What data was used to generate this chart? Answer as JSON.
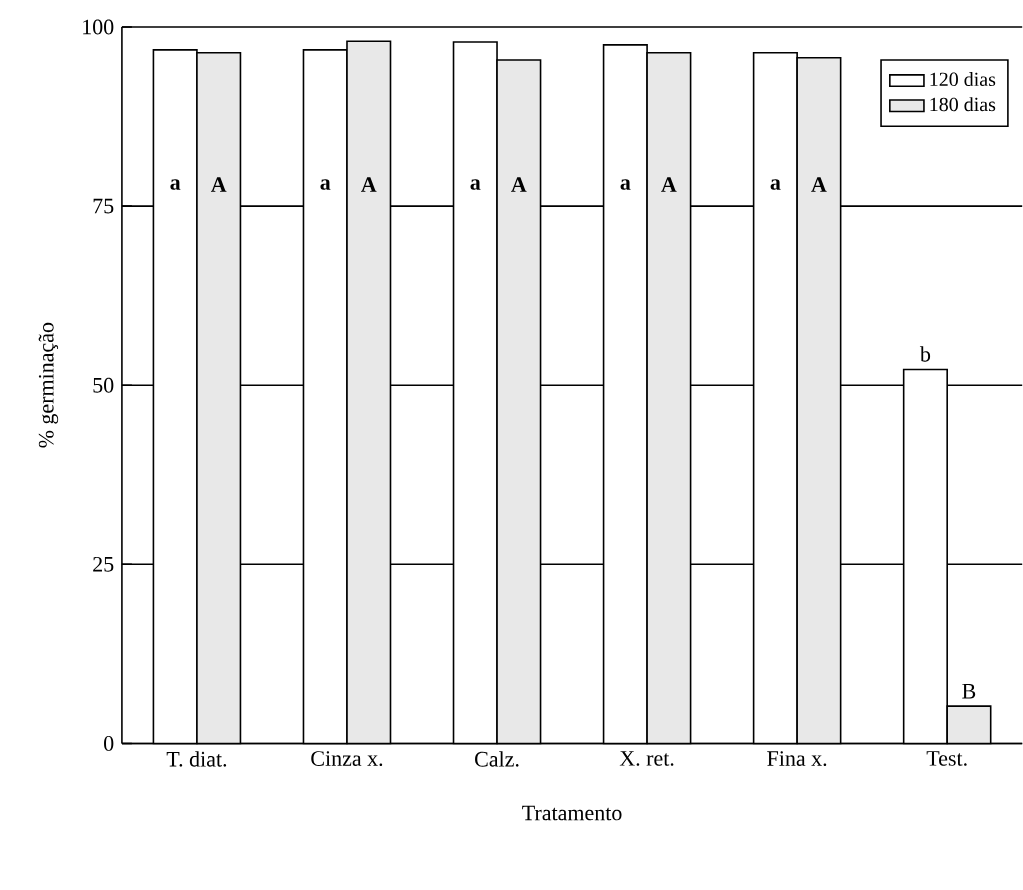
{
  "chart_data": {
    "type": "bar",
    "xlabel": "Tratamento",
    "ylabel": "% germinação",
    "categories": [
      "T. diat.",
      "Cinza x.",
      "Calz.",
      "X. ret.",
      "Fina x.",
      "Test."
    ],
    "series": [
      {
        "name": "120 dias",
        "color": "#ffffff",
        "values": [
          96.8,
          96.8,
          97.9,
          97.5,
          96.4,
          52.2
        ],
        "value_labels": [
          "a",
          "a",
          "a",
          "a",
          "a",
          "b"
        ]
      },
      {
        "name": "180 dias",
        "color": "#e8e8e8",
        "values": [
          96.4,
          98.0,
          95.4,
          96.4,
          95.7,
          5.2
        ],
        "value_labels": [
          "A",
          "A",
          "A",
          "A",
          "A",
          "B"
        ]
      }
    ],
    "ylim": [
      0,
      100
    ],
    "yticks": [
      0,
      25,
      50,
      75,
      100
    ],
    "grid": "y",
    "legend": "top right"
  }
}
